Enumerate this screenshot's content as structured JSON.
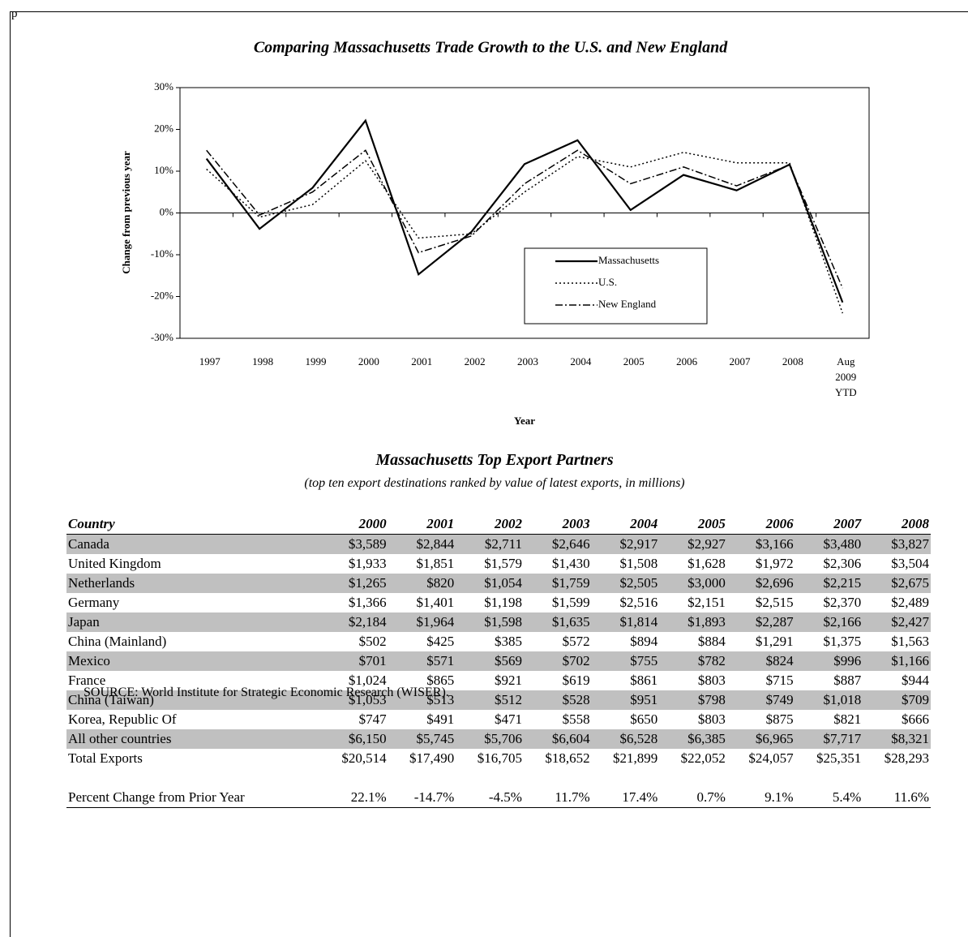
{
  "corner_text": "p",
  "chart_data": {
    "type": "line",
    "title": "Comparing Massachusetts Trade Growth to the U.S. and New England",
    "x_label": "Year",
    "y_label": "Change from previous year",
    "categories": [
      "1997",
      "1998",
      "1999",
      "2000",
      "2001",
      "2002",
      "2003",
      "2004",
      "2005",
      "2006",
      "2007",
      "2008",
      "Aug 2009 YTD"
    ],
    "ylim": [
      -30,
      30
    ],
    "yticks": [
      {
        "value": -30,
        "label": "-30%"
      },
      {
        "value": -20,
        "label": "-20%"
      },
      {
        "value": -10,
        "label": "-10%"
      },
      {
        "value": 0,
        "label": "0%"
      },
      {
        "value": 10,
        "label": "10%"
      },
      {
        "value": 20,
        "label": "20%"
      },
      {
        "value": 30,
        "label": "30%"
      }
    ],
    "legend": "lower right",
    "series": [
      {
        "name": "Massachusetts",
        "color": "#000000",
        "style": "solid",
        "values": [
          13,
          -3.8,
          6,
          22.1,
          -14.7,
          -4.5,
          11.7,
          17.4,
          0.7,
          9.1,
          5.4,
          11.6,
          -21.4
        ]
      },
      {
        "name": "U.S.",
        "color": "#000000",
        "style": "dotted",
        "values": [
          10.5,
          -1,
          2,
          12.5,
          -6,
          -5,
          5,
          13.5,
          11,
          14.5,
          12,
          12,
          -24
        ]
      },
      {
        "name": "New England",
        "color": "#000000",
        "style": "dashdot",
        "values": [
          15,
          -0.5,
          5,
          15,
          -9.5,
          -5.5,
          7,
          15,
          7,
          11,
          6.5,
          11.5,
          -18
        ]
      }
    ]
  },
  "table": {
    "title": "Massachusetts Top Export Partners",
    "subtitle": "(top ten export destinations ranked by value of latest exports, in millions)",
    "columns": [
      "Country",
      "2000",
      "2001",
      "2002",
      "2003",
      "2004",
      "2005",
      "2006",
      "2007",
      "2008"
    ],
    "rows": [
      [
        "Canada",
        "$3,589",
        "$2,844",
        "$2,711",
        "$2,646",
        "$2,917",
        "$2,927",
        "$3,166",
        "$3,480",
        "$3,827"
      ],
      [
        "United Kingdom",
        "$1,933",
        "$1,851",
        "$1,579",
        "$1,430",
        "$1,508",
        "$1,628",
        "$1,972",
        "$2,306",
        "$3,504"
      ],
      [
        "Netherlands",
        "$1,265",
        "$820",
        "$1,054",
        "$1,759",
        "$2,505",
        "$3,000",
        "$2,696",
        "$2,215",
        "$2,675"
      ],
      [
        "Germany",
        "$1,366",
        "$1,401",
        "$1,198",
        "$1,599",
        "$2,516",
        "$2,151",
        "$2,515",
        "$2,370",
        "$2,489"
      ],
      [
        "Japan",
        "$2,184",
        "$1,964",
        "$1,598",
        "$1,635",
        "$1,814",
        "$1,893",
        "$2,287",
        "$2,166",
        "$2,427"
      ],
      [
        "China (Mainland)",
        "$502",
        "$425",
        "$385",
        "$572",
        "$894",
        "$884",
        "$1,291",
        "$1,375",
        "$1,563"
      ],
      [
        "Mexico",
        "$701",
        "$571",
        "$569",
        "$702",
        "$755",
        "$782",
        "$824",
        "$996",
        "$1,166"
      ],
      [
        "France",
        "$1,024",
        "$865",
        "$921",
        "$619",
        "$861",
        "$803",
        "$715",
        "$887",
        "$944"
      ],
      [
        "China (Taiwan)",
        "$1,053",
        "$513",
        "$512",
        "$528",
        "$951",
        "$798",
        "$749",
        "$1,018",
        "$709"
      ],
      [
        "Korea, Republic Of",
        "$747",
        "$491",
        "$471",
        "$558",
        "$650",
        "$803",
        "$875",
        "$821",
        "$666"
      ],
      [
        "All other countries",
        "$6,150",
        "$5,745",
        "$5,706",
        "$6,604",
        "$6,528",
        "$6,385",
        "$6,965",
        "$7,717",
        "$8,321"
      ]
    ],
    "total": [
      "Total Exports",
      "$20,514",
      "$17,490",
      "$16,705",
      "$18,652",
      "$21,899",
      "$22,052",
      "$24,057",
      "$25,351",
      "$28,293"
    ],
    "percent_change": [
      "Percent Change from Prior Year",
      "22.1%",
      "-14.7%",
      "-4.5%",
      "11.7%",
      "17.4%",
      "0.7%",
      "9.1%",
      "5.4%",
      "11.6%"
    ]
  },
  "source": "SOURCE:  World Institute for Strategic Economic Research (WISER)."
}
